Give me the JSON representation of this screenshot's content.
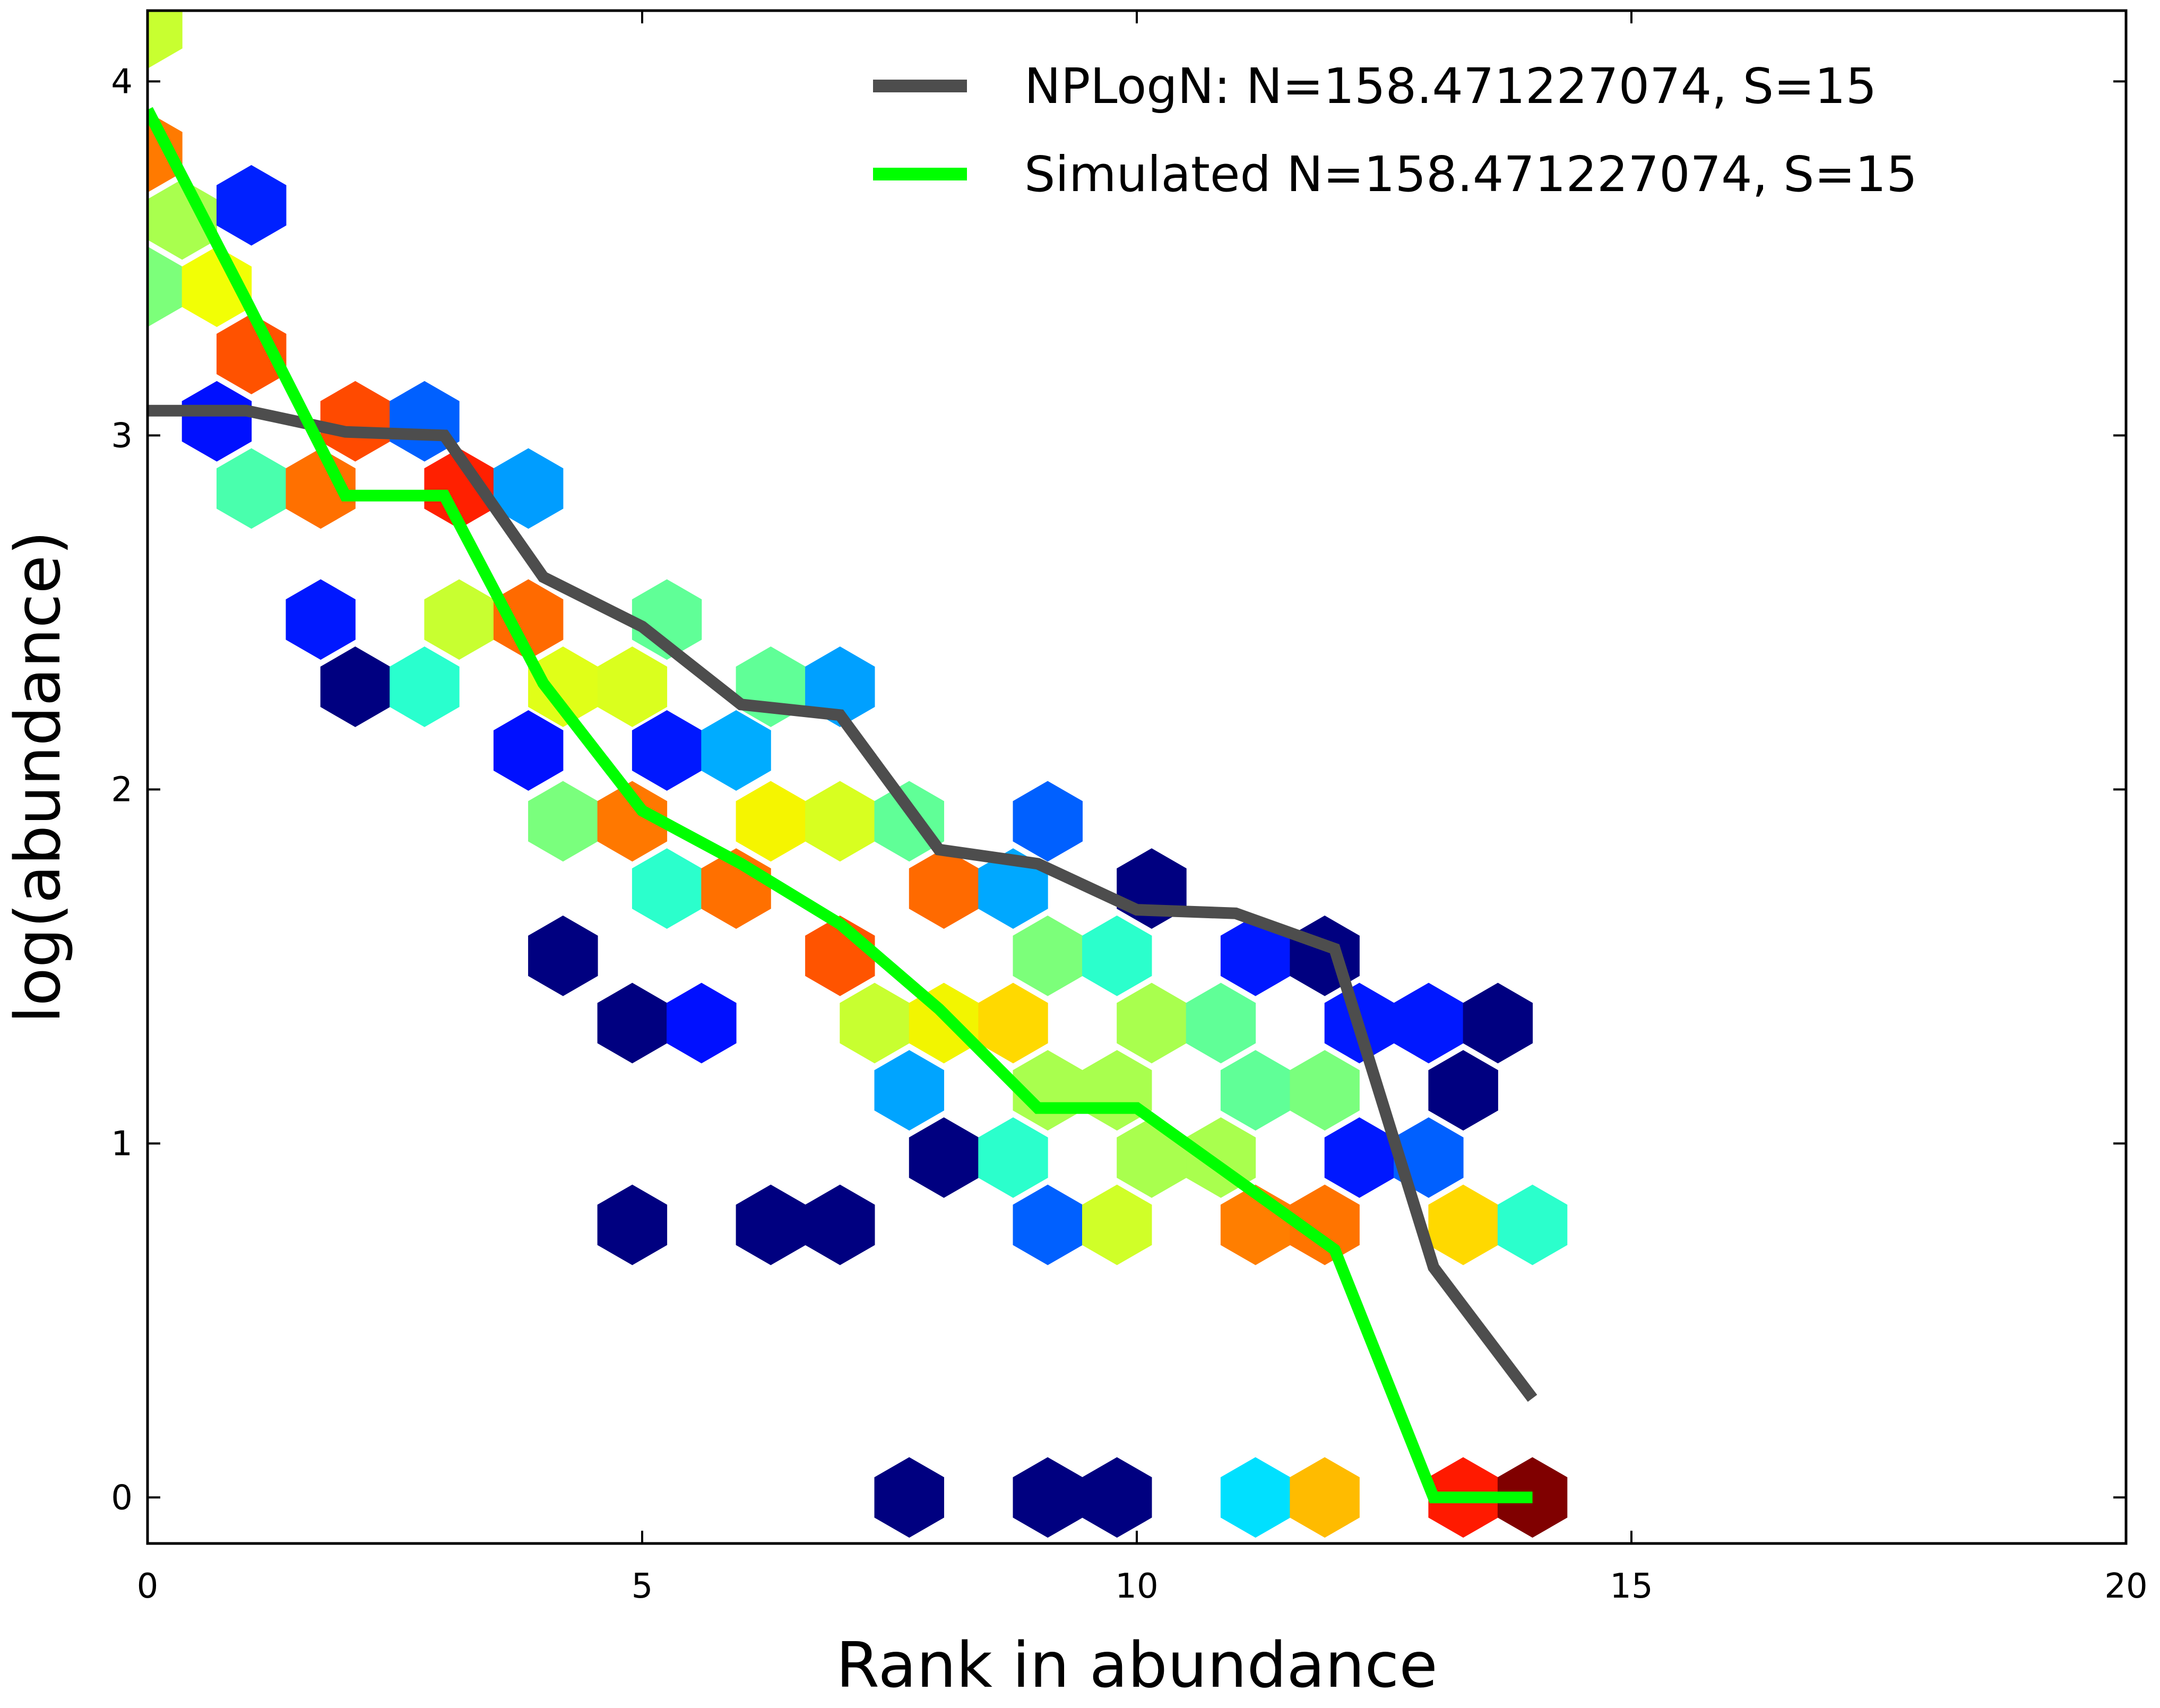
{
  "chart_data": {
    "type": "hexbin+line",
    "xlabel": "Rank in abundance",
    "ylabel": "log(abundance)",
    "xlim": [
      0,
      20
    ],
    "ylim": [
      -0.13,
      4.2
    ],
    "xticks": [
      0,
      5,
      10,
      15,
      20
    ],
    "yticks": [
      0,
      1,
      2,
      3,
      4
    ],
    "xtick_labels": [
      "0",
      "5",
      "10",
      "15",
      "20"
    ],
    "ytick_labels": [
      "0",
      "1",
      "2",
      "3",
      "4"
    ],
    "grid": false,
    "legend_position": "top-right",
    "colormap": "jet",
    "series": [
      {
        "name": "NPLogN: N=158.471227074, S=15",
        "color": "#4d4d4d",
        "x": [
          0,
          1,
          2,
          3,
          4,
          5,
          6,
          7,
          8,
          9,
          10,
          11,
          12,
          13,
          14
        ],
        "y": [
          3.07,
          3.07,
          3.01,
          3.0,
          2.6,
          2.46,
          2.24,
          2.21,
          1.83,
          1.79,
          1.66,
          1.65,
          1.55,
          0.65,
          0.28
        ]
      },
      {
        "name": "Simulated N=158.471227074, S=15",
        "color": "#00ff00",
        "x": [
          0,
          1,
          2,
          3,
          4,
          5,
          6,
          7,
          8,
          9,
          10,
          11,
          12,
          13,
          14
        ],
        "y": [
          3.92,
          3.38,
          2.83,
          2.83,
          2.3,
          1.94,
          1.79,
          1.62,
          1.38,
          1.1,
          1.1,
          0.9,
          0.7,
          0.0,
          0.0
        ]
      }
    ],
    "hexbins": [
      {
        "x": 0.0,
        "y": 4.15,
        "color": "#c8ff30"
      },
      {
        "x": 0.0,
        "y": 3.8,
        "color": "#ff7a00"
      },
      {
        "x": 0.35,
        "y": 3.61,
        "color": "#a9ff4e"
      },
      {
        "x": 0.0,
        "y": 3.42,
        "color": "#7cff7a"
      },
      {
        "x": 0.7,
        "y": 3.42,
        "color": "#f2ff05"
      },
      {
        "x": 1.05,
        "y": 3.65,
        "color": "#0021ff"
      },
      {
        "x": 1.05,
        "y": 3.23,
        "color": "#ff5200"
      },
      {
        "x": 0.7,
        "y": 3.04,
        "color": "#0010ff"
      },
      {
        "x": 1.05,
        "y": 2.85,
        "color": "#49ffad"
      },
      {
        "x": 2.1,
        "y": 3.04,
        "color": "#ff4a00"
      },
      {
        "x": 1.75,
        "y": 2.85,
        "color": "#ff7000"
      },
      {
        "x": 2.8,
        "y": 3.04,
        "color": "#0060ff"
      },
      {
        "x": 3.15,
        "y": 2.85,
        "color": "#ff2000"
      },
      {
        "x": 3.85,
        "y": 2.85,
        "color": "#009dff"
      },
      {
        "x": 1.75,
        "y": 2.48,
        "color": "#0018ff"
      },
      {
        "x": 2.1,
        "y": 2.29,
        "color": "#000080"
      },
      {
        "x": 2.8,
        "y": 2.29,
        "color": "#29ffce"
      },
      {
        "x": 3.15,
        "y": 2.48,
        "color": "#c8ff30"
      },
      {
        "x": 3.85,
        "y": 2.48,
        "color": "#ff6a00"
      },
      {
        "x": 4.2,
        "y": 2.29,
        "color": "#e0ff18"
      },
      {
        "x": 4.9,
        "y": 2.29,
        "color": "#daff1e"
      },
      {
        "x": 5.25,
        "y": 2.48,
        "color": "#60ff97"
      },
      {
        "x": 3.85,
        "y": 2.11,
        "color": "#0010ff"
      },
      {
        "x": 4.2,
        "y": 1.91,
        "color": "#7aff7d"
      },
      {
        "x": 4.9,
        "y": 1.91,
        "color": "#ff7800"
      },
      {
        "x": 5.25,
        "y": 2.11,
        "color": "#0018ff"
      },
      {
        "x": 5.95,
        "y": 2.11,
        "color": "#00acff"
      },
      {
        "x": 6.3,
        "y": 2.29,
        "color": "#60ff97"
      },
      {
        "x": 7.0,
        "y": 2.29,
        "color": "#00a0ff"
      },
      {
        "x": 6.3,
        "y": 1.91,
        "color": "#f5f500"
      },
      {
        "x": 7.0,
        "y": 1.91,
        "color": "#d8ff20"
      },
      {
        "x": 7.7,
        "y": 1.91,
        "color": "#60ff97"
      },
      {
        "x": 5.25,
        "y": 1.72,
        "color": "#2bffcc"
      },
      {
        "x": 5.95,
        "y": 1.72,
        "color": "#ff7000"
      },
      {
        "x": 8.05,
        "y": 1.72,
        "color": "#ff6a00"
      },
      {
        "x": 8.75,
        "y": 1.72,
        "color": "#00a8ff"
      },
      {
        "x": 9.1,
        "y": 1.91,
        "color": "#0060ff"
      },
      {
        "x": 10.15,
        "y": 1.72,
        "color": "#000080"
      },
      {
        "x": 4.2,
        "y": 1.53,
        "color": "#000080"
      },
      {
        "x": 7.0,
        "y": 1.53,
        "color": "#ff5400"
      },
      {
        "x": 9.1,
        "y": 1.53,
        "color": "#7cff7a"
      },
      {
        "x": 9.8,
        "y": 1.53,
        "color": "#2bffcc"
      },
      {
        "x": 11.2,
        "y": 1.53,
        "color": "#0018ff"
      },
      {
        "x": 11.9,
        "y": 1.53,
        "color": "#000080"
      },
      {
        "x": 4.9,
        "y": 1.34,
        "color": "#000080"
      },
      {
        "x": 5.6,
        "y": 1.34,
        "color": "#0010ff"
      },
      {
        "x": 7.35,
        "y": 1.34,
        "color": "#c8ff30"
      },
      {
        "x": 8.05,
        "y": 1.34,
        "color": "#f2f500"
      },
      {
        "x": 8.75,
        "y": 1.34,
        "color": "#ffd900"
      },
      {
        "x": 10.15,
        "y": 1.34,
        "color": "#a9ff4e"
      },
      {
        "x": 10.85,
        "y": 1.34,
        "color": "#60ff97"
      },
      {
        "x": 12.25,
        "y": 1.34,
        "color": "#0018ff"
      },
      {
        "x": 12.95,
        "y": 1.34,
        "color": "#0018ff"
      },
      {
        "x": 13.65,
        "y": 1.34,
        "color": "#000080"
      },
      {
        "x": 7.7,
        "y": 1.15,
        "color": "#00a4ff"
      },
      {
        "x": 9.1,
        "y": 1.15,
        "color": "#a9ff4e"
      },
      {
        "x": 9.8,
        "y": 1.15,
        "color": "#a9ff4e"
      },
      {
        "x": 11.2,
        "y": 1.15,
        "color": "#60ff97"
      },
      {
        "x": 11.9,
        "y": 1.15,
        "color": "#7aff7d"
      },
      {
        "x": 13.3,
        "y": 1.15,
        "color": "#000080"
      },
      {
        "x": 8.05,
        "y": 0.96,
        "color": "#000080"
      },
      {
        "x": 8.75,
        "y": 0.96,
        "color": "#2bffcc"
      },
      {
        "x": 10.15,
        "y": 0.96,
        "color": "#a9ff4e"
      },
      {
        "x": 10.85,
        "y": 0.96,
        "color": "#a9ff4e"
      },
      {
        "x": 12.25,
        "y": 0.96,
        "color": "#0018ff"
      },
      {
        "x": 12.95,
        "y": 0.96,
        "color": "#0060ff"
      },
      {
        "x": 4.9,
        "y": 0.77,
        "color": "#000080"
      },
      {
        "x": 6.3,
        "y": 0.77,
        "color": "#000080"
      },
      {
        "x": 7.0,
        "y": 0.77,
        "color": "#000080"
      },
      {
        "x": 9.1,
        "y": 0.77,
        "color": "#0060ff"
      },
      {
        "x": 9.8,
        "y": 0.77,
        "color": "#d0ff28"
      },
      {
        "x": 11.2,
        "y": 0.77,
        "color": "#ff7e00"
      },
      {
        "x": 11.9,
        "y": 0.77,
        "color": "#ff7400"
      },
      {
        "x": 13.3,
        "y": 0.77,
        "color": "#ffd900"
      },
      {
        "x": 14.0,
        "y": 0.77,
        "color": "#2bffcc"
      },
      {
        "x": 7.7,
        "y": 0.0,
        "color": "#000080"
      },
      {
        "x": 9.1,
        "y": 0.0,
        "color": "#000080"
      },
      {
        "x": 9.8,
        "y": 0.0,
        "color": "#000080"
      },
      {
        "x": 11.2,
        "y": 0.0,
        "color": "#00e0ff"
      },
      {
        "x": 11.9,
        "y": 0.0,
        "color": "#ffbb00"
      },
      {
        "x": 13.3,
        "y": 0.0,
        "color": "#ff1a00"
      },
      {
        "x": 14.0,
        "y": 0.0,
        "color": "#800000"
      }
    ]
  }
}
